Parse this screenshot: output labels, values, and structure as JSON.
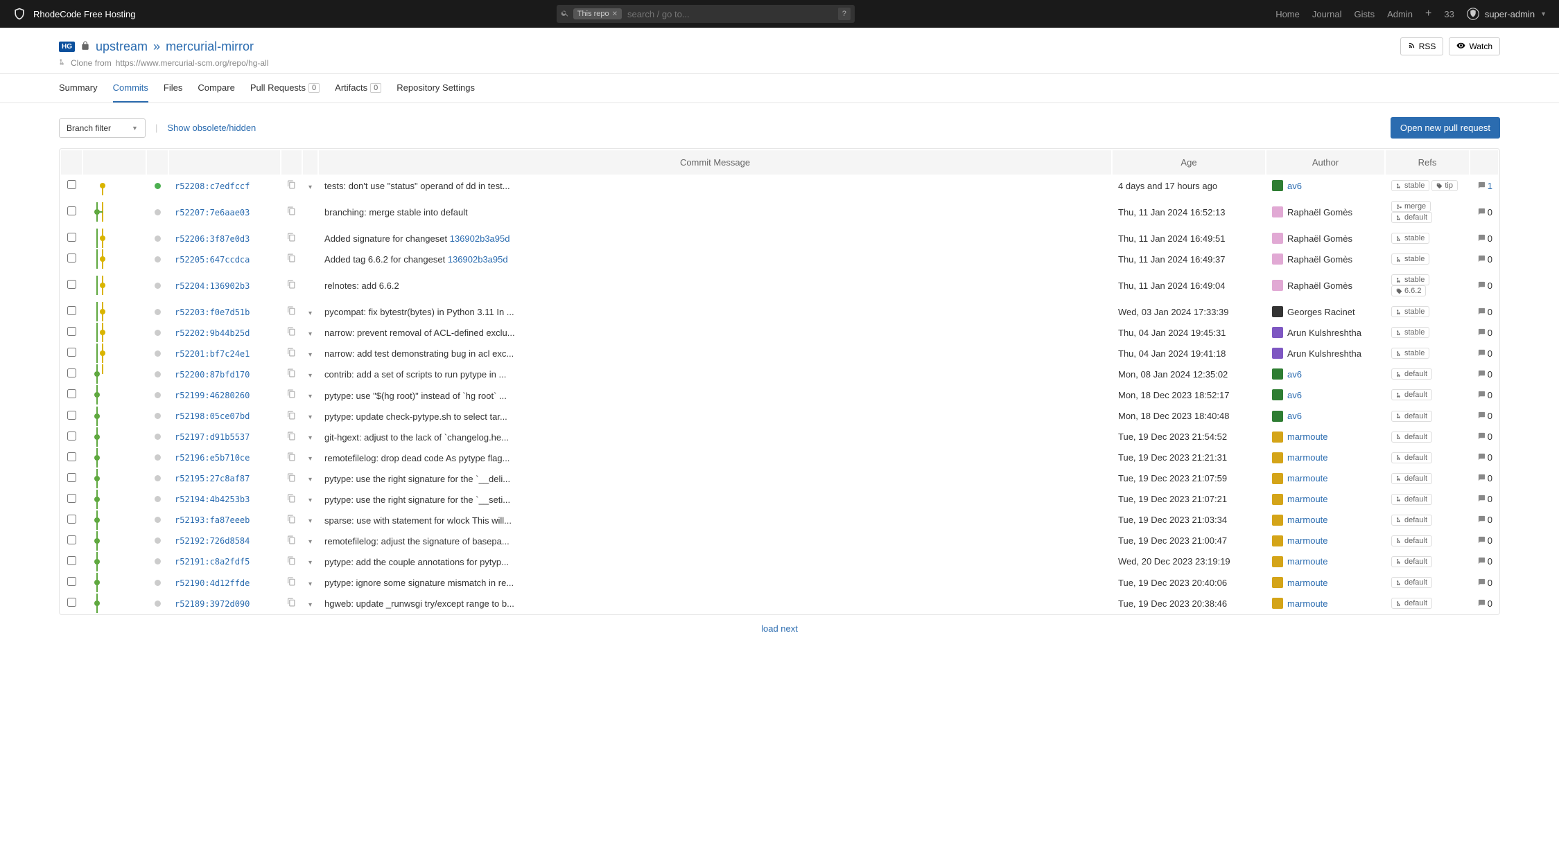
{
  "topbar": {
    "brand": "RhodeCode Free Hosting",
    "search_scope": "This repo",
    "search_placeholder": "search / go to...",
    "nav": {
      "home": "Home",
      "journal": "Journal",
      "gists": "Gists",
      "admin": "Admin",
      "count": "33"
    },
    "user": "super-admin"
  },
  "repo": {
    "hg_badge": "HG",
    "parent": "upstream",
    "name": "mercurial-mirror",
    "clone_prefix": "Clone from",
    "clone_url": "https://www.mercurial-scm.org/repo/hg-all",
    "rss_btn": "RSS",
    "watch_btn": "Watch"
  },
  "nav": {
    "summary": "Summary",
    "commits": "Commits",
    "files": "Files",
    "compare": "Compare",
    "pull_requests": "Pull Requests",
    "pr_count": "0",
    "artifacts": "Artifacts",
    "artifacts_count": "0",
    "settings": "Repository Settings"
  },
  "toolbar": {
    "branch_filter": "Branch filter",
    "show_hidden": "Show obsolete/hidden",
    "open_pr": "Open new pull request"
  },
  "headers": {
    "msg": "Commit Message",
    "age": "Age",
    "author": "Author",
    "refs": "Refs"
  },
  "graph_colors": {
    "default_line": "#5fa83f",
    "stable_line": "#d9b400",
    "node_inactive": "#cccccc",
    "node_green": "#4caf50"
  },
  "commits": [
    {
      "rev": "r52208:c7edfccf",
      "dot": "#4caf50",
      "branch": "stable",
      "expand": true,
      "msg": "tests: don't use \"status\" operand of dd in test...",
      "age": "4 days and 17 hours ago",
      "author": "av6",
      "author_link": true,
      "avatar_color": "#2e7d32",
      "refs": [
        {
          "icon": "branch",
          "label": "stable"
        },
        {
          "icon": "tag",
          "label": "tip"
        }
      ],
      "comments": "1",
      "comments_link": true
    },
    {
      "rev": "r52207:7e6aae03",
      "dot": "#cccccc",
      "branch": "default",
      "expand": false,
      "msg": "branching: merge stable into default",
      "age": "Thu, 11 Jan 2024 16:52:13",
      "author": "Raphaël Gomès",
      "author_link": false,
      "avatar_color": "#e1a9d4",
      "refs": [
        {
          "icon": "merge",
          "label": "merge"
        },
        {
          "icon": "branch",
          "label": "default"
        }
      ],
      "comments": "0"
    },
    {
      "rev": "r52206:3f87e0d3",
      "dot": "#cccccc",
      "branch": "stable",
      "expand": false,
      "msg": "Added signature for changeset ",
      "msg_link": "136902b3a95d",
      "age": "Thu, 11 Jan 2024 16:49:51",
      "author": "Raphaël Gomès",
      "author_link": false,
      "avatar_color": "#e1a9d4",
      "refs": [
        {
          "icon": "branch",
          "label": "stable"
        }
      ],
      "comments": "0"
    },
    {
      "rev": "r52205:647ccdca",
      "dot": "#cccccc",
      "branch": "stable",
      "expand": false,
      "msg": "Added tag 6.6.2 for changeset ",
      "msg_link": "136902b3a95d",
      "age": "Thu, 11 Jan 2024 16:49:37",
      "author": "Raphaël Gomès",
      "author_link": false,
      "avatar_color": "#e1a9d4",
      "refs": [
        {
          "icon": "branch",
          "label": "stable"
        }
      ],
      "comments": "0"
    },
    {
      "rev": "r52204:136902b3",
      "dot": "#cccccc",
      "branch": "stable",
      "expand": false,
      "msg": "relnotes: add 6.6.2",
      "age": "Thu, 11 Jan 2024 16:49:04",
      "author": "Raphaël Gomès",
      "author_link": false,
      "avatar_color": "#e1a9d4",
      "refs": [
        {
          "icon": "branch",
          "label": "stable"
        },
        {
          "icon": "tag",
          "label": "6.6.2"
        }
      ],
      "comments": "0"
    },
    {
      "rev": "r52203:f0e7d51b",
      "dot": "#cccccc",
      "branch": "stable",
      "expand": true,
      "msg": "pycompat: fix bytestr(bytes) in Python 3.11 In ...",
      "age": "Wed, 03 Jan 2024 17:33:39",
      "author": "Georges Racinet",
      "author_link": false,
      "avatar_color": "#333333",
      "refs": [
        {
          "icon": "branch",
          "label": "stable"
        }
      ],
      "comments": "0"
    },
    {
      "rev": "r52202:9b44b25d",
      "dot": "#cccccc",
      "branch": "stable",
      "expand": true,
      "msg": "narrow: prevent removal of ACL-defined exclu...",
      "age": "Thu, 04 Jan 2024 19:45:31",
      "author": "Arun Kulshreshtha",
      "author_link": false,
      "avatar_color": "#7e57c2",
      "refs": [
        {
          "icon": "branch",
          "label": "stable"
        }
      ],
      "comments": "0"
    },
    {
      "rev": "r52201:bf7c24e1",
      "dot": "#cccccc",
      "branch": "stable",
      "expand": true,
      "msg": "narrow: add test demonstrating bug in acl exc...",
      "age": "Thu, 04 Jan 2024 19:41:18",
      "author": "Arun Kulshreshtha",
      "author_link": false,
      "avatar_color": "#7e57c2",
      "refs": [
        {
          "icon": "branch",
          "label": "stable"
        }
      ],
      "comments": "0"
    },
    {
      "rev": "r52200:87bfd170",
      "dot": "#cccccc",
      "branch": "default",
      "expand": true,
      "msg": "contrib: add a set of scripts to run pytype in ...",
      "age": "Mon, 08 Jan 2024 12:35:02",
      "author": "av6",
      "author_link": true,
      "avatar_color": "#2e7d32",
      "refs": [
        {
          "icon": "branch",
          "label": "default"
        }
      ],
      "comments": "0"
    },
    {
      "rev": "r52199:46280260",
      "dot": "#cccccc",
      "branch": "default",
      "expand": true,
      "msg": "pytype: use \"$(hg root)\" instead of `hg root` ...",
      "age": "Mon, 18 Dec 2023 18:52:17",
      "author": "av6",
      "author_link": true,
      "avatar_color": "#2e7d32",
      "refs": [
        {
          "icon": "branch",
          "label": "default"
        }
      ],
      "comments": "0"
    },
    {
      "rev": "r52198:05ce07bd",
      "dot": "#cccccc",
      "branch": "default",
      "expand": true,
      "msg": "pytype: update check-pytype.sh to select tar...",
      "age": "Mon, 18 Dec 2023 18:40:48",
      "author": "av6",
      "author_link": true,
      "avatar_color": "#2e7d32",
      "refs": [
        {
          "icon": "branch",
          "label": "default"
        }
      ],
      "comments": "0"
    },
    {
      "rev": "r52197:d91b5537",
      "dot": "#cccccc",
      "branch": "default",
      "expand": true,
      "msg": "git-hgext: adjust to the lack of `changelog.he...",
      "age": "Tue, 19 Dec 2023 21:54:52",
      "author": "marmoute",
      "author_link": true,
      "avatar_color": "#d4a418",
      "refs": [
        {
          "icon": "branch",
          "label": "default"
        }
      ],
      "comments": "0"
    },
    {
      "rev": "r52196:e5b710ce",
      "dot": "#cccccc",
      "branch": "default",
      "expand": true,
      "msg": "remotefilelog: drop dead code As pytype flag...",
      "age": "Tue, 19 Dec 2023 21:21:31",
      "author": "marmoute",
      "author_link": true,
      "avatar_color": "#d4a418",
      "refs": [
        {
          "icon": "branch",
          "label": "default"
        }
      ],
      "comments": "0"
    },
    {
      "rev": "r52195:27c8af87",
      "dot": "#cccccc",
      "branch": "default",
      "expand": true,
      "msg": "pytype: use the right signature for the `__deli...",
      "age": "Tue, 19 Dec 2023 21:07:59",
      "author": "marmoute",
      "author_link": true,
      "avatar_color": "#d4a418",
      "refs": [
        {
          "icon": "branch",
          "label": "default"
        }
      ],
      "comments": "0"
    },
    {
      "rev": "r52194:4b4253b3",
      "dot": "#cccccc",
      "branch": "default",
      "expand": true,
      "msg": "pytype: use the right signature for the `__seti...",
      "age": "Tue, 19 Dec 2023 21:07:21",
      "author": "marmoute",
      "author_link": true,
      "avatar_color": "#d4a418",
      "refs": [
        {
          "icon": "branch",
          "label": "default"
        }
      ],
      "comments": "0"
    },
    {
      "rev": "r52193:fa87eeeb",
      "dot": "#cccccc",
      "branch": "default",
      "expand": true,
      "msg": "sparse: use with statement for wlock This will...",
      "age": "Tue, 19 Dec 2023 21:03:34",
      "author": "marmoute",
      "author_link": true,
      "avatar_color": "#d4a418",
      "refs": [
        {
          "icon": "branch",
          "label": "default"
        }
      ],
      "comments": "0"
    },
    {
      "rev": "r52192:726d8584",
      "dot": "#cccccc",
      "branch": "default",
      "expand": true,
      "msg": "remotefilelog: adjust the signature of basepa...",
      "age": "Tue, 19 Dec 2023 21:00:47",
      "author": "marmoute",
      "author_link": true,
      "avatar_color": "#d4a418",
      "refs": [
        {
          "icon": "branch",
          "label": "default"
        }
      ],
      "comments": "0"
    },
    {
      "rev": "r52191:c8a2fdf5",
      "dot": "#cccccc",
      "branch": "default",
      "expand": true,
      "msg": "pytype: add the couple annotations for pytyp...",
      "age": "Wed, 20 Dec 2023 23:19:19",
      "author": "marmoute",
      "author_link": true,
      "avatar_color": "#d4a418",
      "refs": [
        {
          "icon": "branch",
          "label": "default"
        }
      ],
      "comments": "0"
    },
    {
      "rev": "r52190:4d12ffde",
      "dot": "#cccccc",
      "branch": "default",
      "expand": true,
      "msg": "pytype: ignore some signature mismatch in re...",
      "age": "Tue, 19 Dec 2023 20:40:06",
      "author": "marmoute",
      "author_link": true,
      "avatar_color": "#d4a418",
      "refs": [
        {
          "icon": "branch",
          "label": "default"
        }
      ],
      "comments": "0"
    },
    {
      "rev": "r52189:3972d090",
      "dot": "#cccccc",
      "branch": "default",
      "expand": true,
      "msg": "hgweb: update _runwsgi try/except range to b...",
      "age": "Tue, 19 Dec 2023 20:38:46",
      "author": "marmoute",
      "author_link": true,
      "avatar_color": "#d4a418",
      "refs": [
        {
          "icon": "branch",
          "label": "default"
        }
      ],
      "comments": "0"
    }
  ],
  "load_next": "load next"
}
